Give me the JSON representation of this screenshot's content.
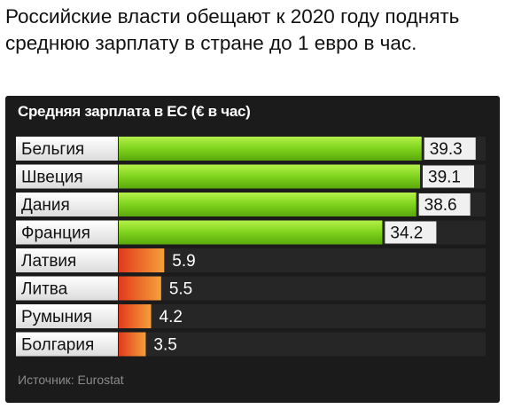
{
  "caption": "Российские власти обещают к 2020 году поднять среднюю зарплату в стране до 1 евро в час.",
  "chart_data": {
    "type": "bar",
    "orientation": "horizontal",
    "title": "Средняя зарплата в ЕС (€ в час)",
    "source": "Источник: Eurostat",
    "categories": [
      "Бельгия",
      "Швеция",
      "Дания",
      "Франция",
      "Латвия",
      "Литва",
      "Румыния",
      "Болгария"
    ],
    "values": [
      39.3,
      39.1,
      38.6,
      34.2,
      5.9,
      5.5,
      4.2,
      3.5
    ],
    "value_labels": [
      "39.3",
      "39.1",
      "38.6",
      "34.2",
      "5.9",
      "5.5",
      "4.2",
      "3.5"
    ],
    "xlim": [
      0,
      46
    ],
    "grid": false,
    "colors": {
      "high": "#7ed31c",
      "high_light": "#b4f04a",
      "low": "#e8501f",
      "low_light": "#f5a03a",
      "label_bg": "#f2f2f2",
      "row_bg": "#2b2b2b",
      "text_dark": "#111111",
      "text_light": "#ffffff"
    }
  }
}
